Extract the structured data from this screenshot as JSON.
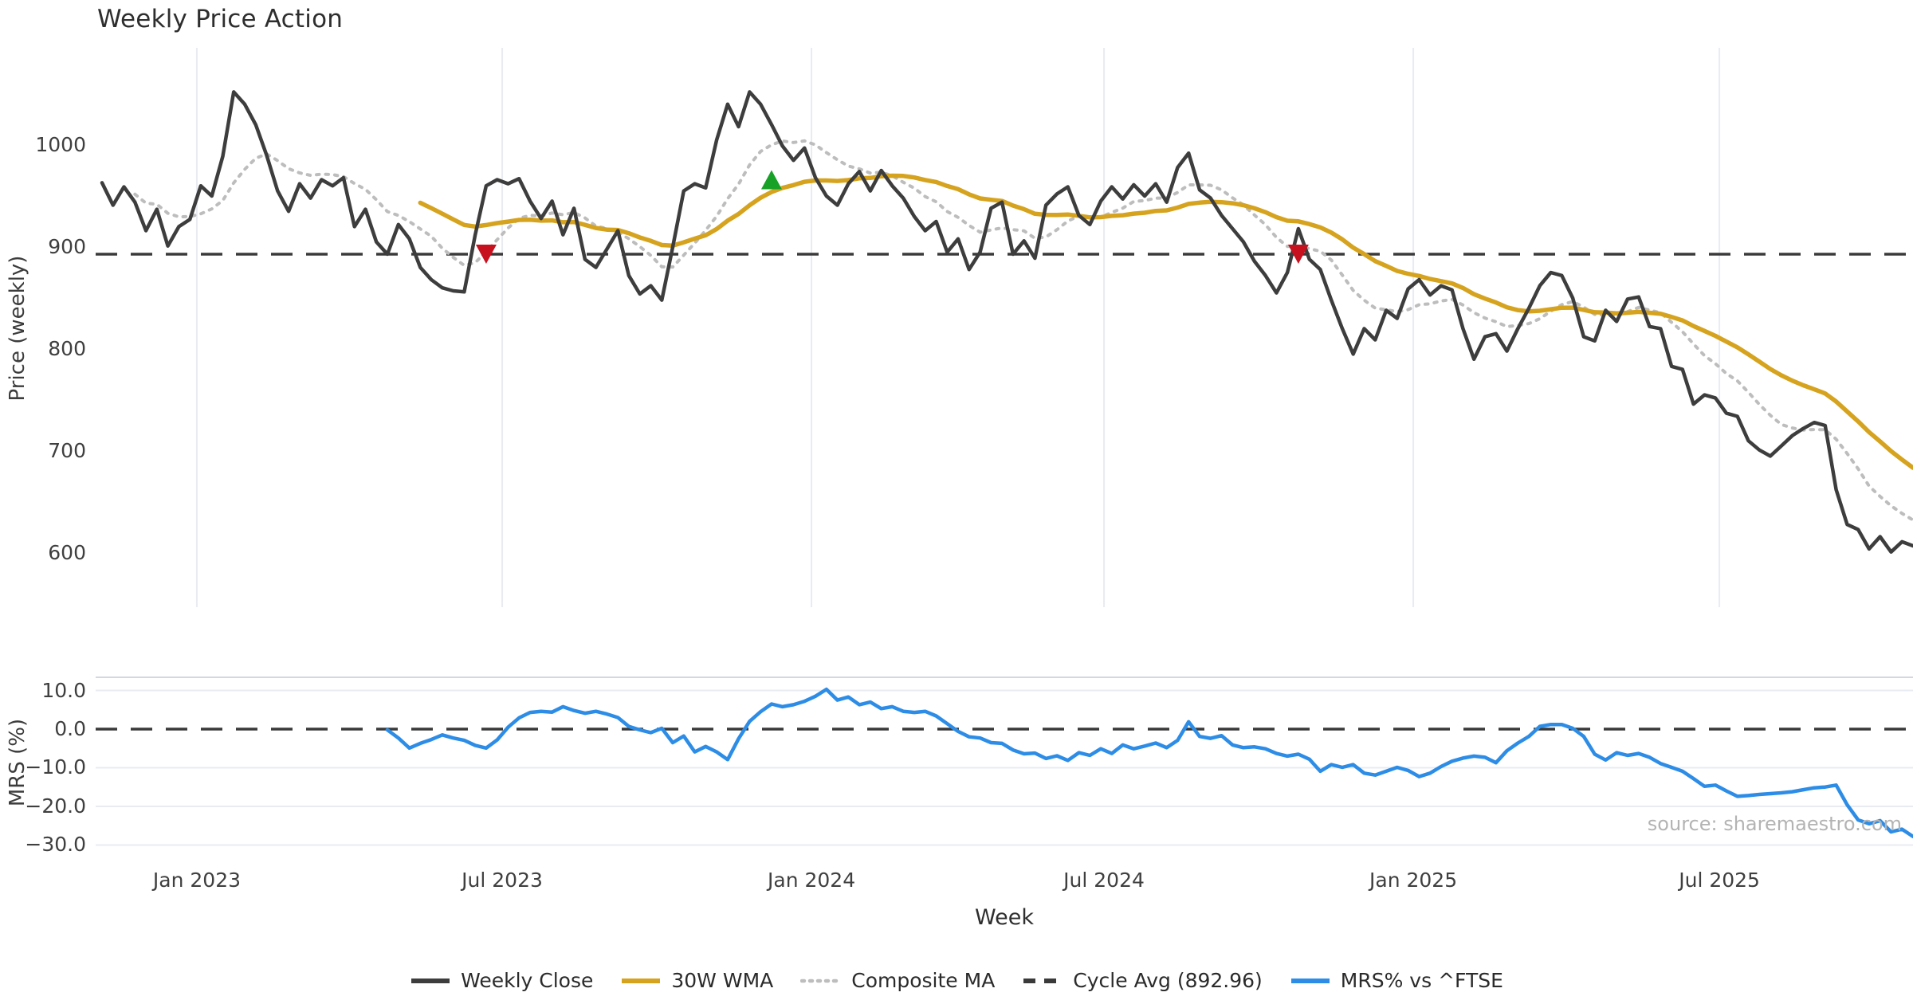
{
  "title": "Weekly Price Action",
  "source_note": "source: sharemaestro.com",
  "xaxis": {
    "label": "Week",
    "ticks": [
      {
        "week": 8.64,
        "label": "Jan 2023"
      },
      {
        "week": 36.46,
        "label": "Jul 2023"
      },
      {
        "week": 64.64,
        "label": "Jan 2024"
      },
      {
        "week": 91.29,
        "label": "Jul 2024"
      },
      {
        "week": 119.47,
        "label": "Jan 2025"
      },
      {
        "week": 147.36,
        "label": "Jul 2025"
      }
    ]
  },
  "price_panel": {
    "ylabel": "Price (weekly)",
    "yticks": [
      {
        "value": 1000,
        "label": "1000"
      },
      {
        "value": 900,
        "label": "900"
      },
      {
        "value": 800,
        "label": "800"
      },
      {
        "value": 700,
        "label": "700"
      },
      {
        "value": 600,
        "label": "600"
      }
    ]
  },
  "mrs_panel": {
    "ylabel": "MRS (%)",
    "yticks": [
      {
        "value": 10,
        "label": "10.0"
      },
      {
        "value": 0,
        "label": "0.0"
      },
      {
        "value": -10,
        "label": "−10.0"
      },
      {
        "value": -20,
        "label": "−20.0"
      },
      {
        "value": -30,
        "label": "−30.0"
      }
    ]
  },
  "legend": [
    {
      "label": "Weekly Close",
      "style": "solid",
      "color_key": "close"
    },
    {
      "label": "30W WMA",
      "style": "solid",
      "color_key": "wma"
    },
    {
      "label": "Composite MA",
      "style": "dotted",
      "color_key": "composite"
    },
    {
      "label": "Cycle Avg (892.96)",
      "style": "dashed",
      "color_key": "cycle"
    },
    {
      "label": "MRS% vs ^FTSE",
      "style": "solid",
      "color_key": "mrs"
    }
  ],
  "colors": {
    "close": "#3d3d3d",
    "wma": "#d6a31f",
    "composite": "#bdbdbd",
    "cycle": "#3a3a3a",
    "mrs": "#2d8de6",
    "signal_green": "#18a127",
    "signal_red": "#c8111f",
    "grid": "#e8ebf2",
    "spine": "#d4d7dd"
  },
  "chart_data": [
    {
      "type": "line",
      "name": "price",
      "title": "Weekly Price Action",
      "xlabel": "Week",
      "ylabel": "Price (weekly)",
      "ylim_ticks": [
        600,
        1000
      ],
      "grid": "vertical",
      "cycle_avg": 892.96,
      "ma_definitions": {
        "wma_window": 30,
        "composite_windows": [
          4,
          9,
          13
        ]
      },
      "weekly_close": [
        963,
        941,
        959,
        944,
        916,
        937,
        901,
        920,
        927,
        960,
        950,
        989,
        1052,
        1040,
        1020,
        990,
        955,
        935,
        962,
        948,
        966,
        960,
        968,
        920,
        937,
        905,
        893,
        922,
        908,
        880,
        868,
        860,
        857,
        856,
        912,
        960,
        966,
        962,
        967,
        945,
        928,
        945,
        912,
        938,
        888,
        880,
        898,
        916,
        872,
        854,
        862,
        848,
        900,
        955,
        962,
        958,
        1005,
        1040,
        1018,
        1052,
        1040,
        1020,
        999,
        985,
        997,
        968,
        950,
        941,
        962,
        974,
        955,
        975,
        960,
        948,
        930,
        916,
        925,
        895,
        908,
        878,
        895,
        938,
        944,
        893,
        906,
        889,
        941,
        952,
        959,
        931,
        922,
        945,
        959,
        947,
        961,
        950,
        962,
        944,
        978,
        992,
        956,
        948,
        931,
        918,
        905,
        886,
        872,
        855,
        875,
        918,
        888,
        878,
        848,
        820,
        795,
        820,
        809,
        838,
        830,
        859,
        868,
        853,
        862,
        858,
        820,
        790,
        812,
        815,
        798,
        820,
        840,
        862,
        875,
        872,
        850,
        812,
        808,
        838,
        827,
        849,
        851,
        822,
        820,
        783,
        780,
        746,
        755,
        752,
        737,
        734,
        710,
        701,
        695,
        705,
        715,
        722,
        728,
        725,
        662,
        628,
        623,
        604,
        616,
        601,
        611,
        607
      ],
      "markers": [
        {
          "shape": "triangle-down",
          "color_key": "signal_red",
          "week": 35,
          "value": 893
        },
        {
          "shape": "triangle-up",
          "color_key": "signal_green",
          "week": 61,
          "value": 966
        },
        {
          "shape": "triangle-down",
          "color_key": "signal_red",
          "week": 109,
          "value": 893
        }
      ]
    },
    {
      "type": "line",
      "name": "mrs",
      "ylabel": "MRS (%)",
      "ylim_ticks": [
        -30,
        10
      ],
      "grid": "horizontal",
      "zero_line": 0,
      "start_week": 26,
      "values": [
        -0.2,
        -2.3,
        -4.9,
        -3.7,
        -2.7,
        -1.5,
        -2.3,
        -2.9,
        -4.2,
        -4.9,
        -2.8,
        0.5,
        2.9,
        4.3,
        4.6,
        4.4,
        5.8,
        4.8,
        4.1,
        4.6,
        3.9,
        3.0,
        0.7,
        -0.2,
        -0.9,
        0.2,
        -3.5,
        -1.8,
        -5.9,
        -4.5,
        -5.9,
        -7.9,
        -2.5,
        2.0,
        4.5,
        6.5,
        5.8,
        6.3,
        7.2,
        8.5,
        10.3,
        7.5,
        8.3,
        6.3,
        7.0,
        5.3,
        5.8,
        4.6,
        4.3,
        4.6,
        3.4,
        1.4,
        -0.6,
        -2.0,
        -2.3,
        -3.5,
        -3.7,
        -5.4,
        -6.4,
        -6.2,
        -7.6,
        -6.9,
        -8.1,
        -6.1,
        -6.8,
        -5.1,
        -6.3,
        -4.1,
        -5.1,
        -4.4,
        -3.6,
        -4.8,
        -2.9,
        1.9,
        -1.9,
        -2.4,
        -1.7,
        -4.1,
        -4.8,
        -4.6,
        -5.1,
        -6.3,
        -7.0,
        -6.5,
        -7.8,
        -10.9,
        -9.2,
        -9.9,
        -9.2,
        -11.4,
        -11.9,
        -10.9,
        -9.9,
        -10.7,
        -12.3,
        -11.4,
        -9.7,
        -8.3,
        -7.5,
        -7.0,
        -7.3,
        -8.7,
        -5.6,
        -3.6,
        -1.9,
        0.7,
        1.2,
        1.2,
        0.2,
        -1.9,
        -6.5,
        -8.0,
        -6.1,
        -6.8,
        -6.3,
        -7.3,
        -8.9,
        -9.9,
        -10.9,
        -12.8,
        -14.8,
        -14.5,
        -16.0,
        -17.4,
        -17.2,
        -16.9,
        -16.7,
        -16.5,
        -16.2,
        -15.7,
        -15.2,
        -15.0,
        -14.5,
        -19.6,
        -23.5,
        -24.5,
        -23.7,
        -26.6,
        -25.9,
        -27.8
      ]
    }
  ]
}
